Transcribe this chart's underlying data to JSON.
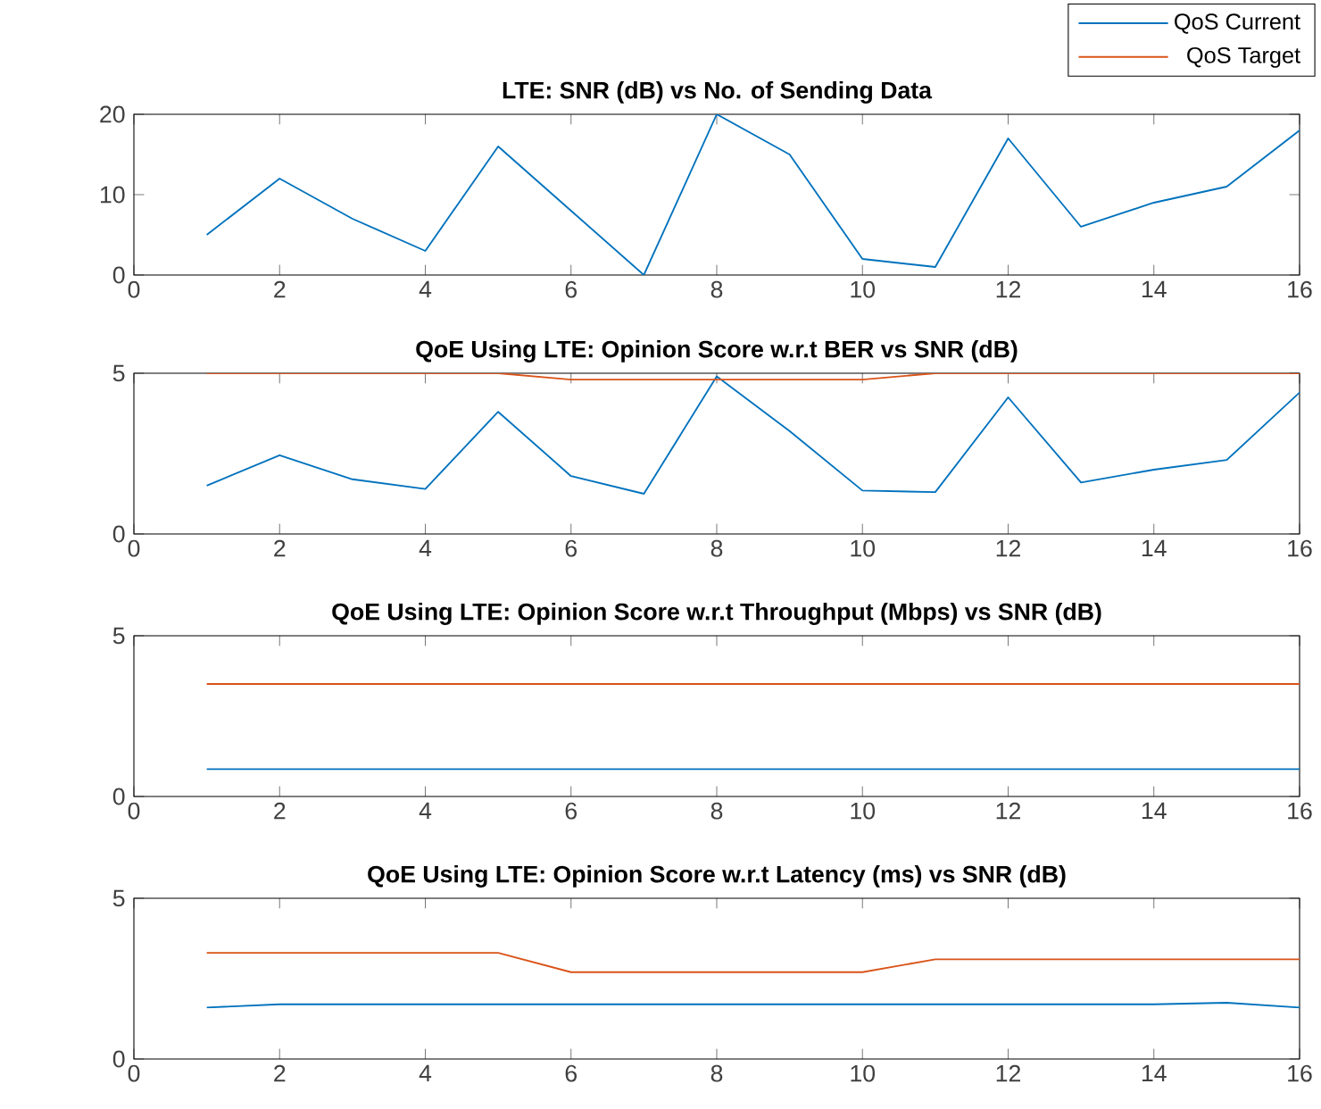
{
  "chart_data": [
    {
      "type": "line",
      "title": "LTE: SNR (dB) vs No. of Sending Data",
      "x": [
        1,
        2,
        3,
        4,
        5,
        6,
        7,
        8,
        9,
        10,
        11,
        12,
        13,
        14,
        15,
        16
      ],
      "xlim": [
        0,
        16
      ],
      "xticks": [
        0,
        2,
        4,
        6,
        8,
        10,
        12,
        14,
        16
      ],
      "ylim": [
        0,
        20
      ],
      "yticks": [
        0,
        10,
        20
      ],
      "grid": false,
      "legend": false,
      "series": [
        {
          "color": "#0072bd",
          "values": [
            5,
            12,
            7,
            3,
            16,
            8,
            0,
            20,
            15,
            2,
            1,
            17,
            6,
            9,
            11,
            18
          ]
        }
      ]
    },
    {
      "type": "line",
      "title": "QoE Using LTE: Opinion Score w.r.t BER vs SNR (dB)",
      "x": [
        1,
        2,
        3,
        4,
        5,
        6,
        7,
        8,
        9,
        10,
        11,
        12,
        13,
        14,
        15,
        16
      ],
      "xlim": [
        0,
        16
      ],
      "xticks": [
        0,
        2,
        4,
        6,
        8,
        10,
        12,
        14,
        16
      ],
      "ylim": [
        0,
        5
      ],
      "yticks": [
        0,
        5
      ],
      "grid": false,
      "legend": "top right",
      "series": [
        {
          "name": "QoS Current",
          "color": "#0072bd",
          "values": [
            1.5,
            2.45,
            1.7,
            1.4,
            3.8,
            1.8,
            1.25,
            4.9,
            3.2,
            1.35,
            1.3,
            4.25,
            1.6,
            2.0,
            2.3,
            4.4
          ]
        },
        {
          "name": "QoS Target",
          "color": "#d95319",
          "values": [
            5,
            5,
            5,
            5,
            5,
            4.8,
            4.8,
            4.8,
            4.8,
            4.8,
            5,
            5,
            5,
            5,
            5,
            5
          ]
        }
      ]
    },
    {
      "type": "line",
      "title": "QoE Using LTE: Opinion Score w.r.t Throughput (Mbps) vs SNR (dB)",
      "x": [
        1,
        2,
        3,
        4,
        5,
        6,
        7,
        8,
        9,
        10,
        11,
        12,
        13,
        14,
        15,
        16
      ],
      "xlim": [
        0,
        16
      ],
      "xticks": [
        0,
        2,
        4,
        6,
        8,
        10,
        12,
        14,
        16
      ],
      "ylim": [
        0,
        5
      ],
      "yticks": [
        0,
        5
      ],
      "grid": false,
      "legend": false,
      "series": [
        {
          "color": "#0072bd",
          "values": [
            0.85,
            0.85,
            0.85,
            0.85,
            0.85,
            0.85,
            0.85,
            0.85,
            0.85,
            0.85,
            0.85,
            0.85,
            0.85,
            0.85,
            0.85,
            0.85
          ]
        },
        {
          "color": "#d95319",
          "values": [
            3.5,
            3.5,
            3.5,
            3.5,
            3.5,
            3.5,
            3.5,
            3.5,
            3.5,
            3.5,
            3.5,
            3.5,
            3.5,
            3.5,
            3.5,
            3.5
          ]
        }
      ]
    },
    {
      "type": "line",
      "title": "QoE Using LTE: Opinion Score w.r.t Latency (ms) vs SNR (dB)",
      "x": [
        1,
        2,
        3,
        4,
        5,
        6,
        7,
        8,
        9,
        10,
        11,
        12,
        13,
        14,
        15,
        16
      ],
      "xlim": [
        0,
        16
      ],
      "xticks": [
        0,
        2,
        4,
        6,
        8,
        10,
        12,
        14,
        16
      ],
      "ylim": [
        0,
        5
      ],
      "yticks": [
        0,
        5
      ],
      "grid": false,
      "legend": false,
      "series": [
        {
          "color": "#0072bd",
          "values": [
            1.6,
            1.7,
            1.7,
            1.7,
            1.7,
            1.7,
            1.7,
            1.7,
            1.7,
            1.7,
            1.7,
            1.7,
            1.7,
            1.7,
            1.75,
            1.6
          ]
        },
        {
          "color": "#d95319",
          "values": [
            3.3,
            3.3,
            3.3,
            3.3,
            3.3,
            2.7,
            2.7,
            2.7,
            2.7,
            2.7,
            3.1,
            3.1,
            3.1,
            3.1,
            3.1,
            3.1
          ]
        }
      ]
    }
  ]
}
